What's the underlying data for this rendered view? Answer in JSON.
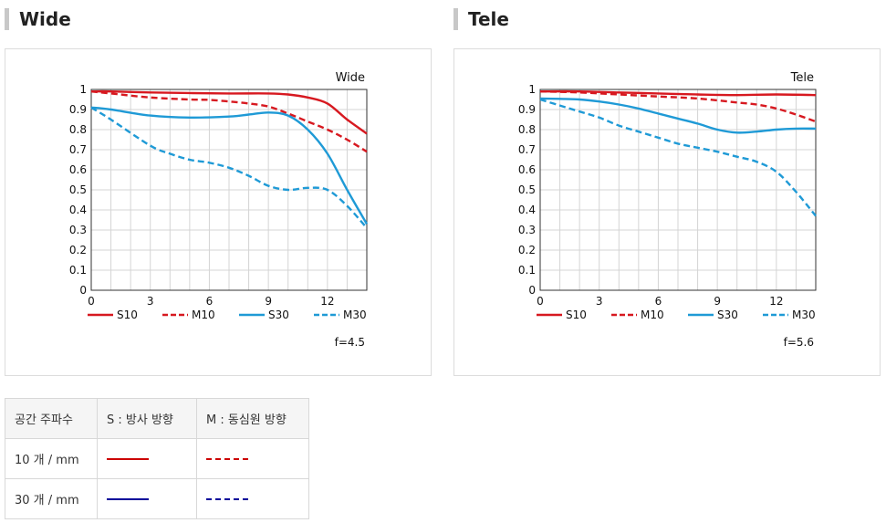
{
  "sections": [
    {
      "title": "Wide"
    },
    {
      "title": "Tele"
    }
  ],
  "colors": {
    "sagittal_10": "#d71920",
    "sagittal_30": "#1f9ad6",
    "table_red": "#cc0000",
    "table_blue": "#000099"
  },
  "chart_data": [
    {
      "type": "line",
      "title": "Wide",
      "footnote": "f=4.5",
      "xlim": [
        0,
        14
      ],
      "ylim": [
        0,
        1
      ],
      "xticks": [
        "0",
        "3",
        "6",
        "9",
        "12"
      ],
      "yticks": [
        "0",
        "0.1",
        "0.2",
        "0.3",
        "0.4",
        "0.5",
        "0.6",
        "0.7",
        "0.8",
        "0.9",
        "1"
      ],
      "grid": true,
      "legend_position": "bottom",
      "series": [
        {
          "name": "S10",
          "color": "#d71920",
          "dash": false,
          "x": [
            0,
            1,
            3,
            5,
            7,
            9,
            10,
            11,
            12,
            13,
            14
          ],
          "y": [
            0.99,
            0.99,
            0.985,
            0.982,
            0.98,
            0.98,
            0.975,
            0.96,
            0.93,
            0.85,
            0.78
          ]
        },
        {
          "name": "M10",
          "color": "#d71920",
          "dash": true,
          "x": [
            0,
            1,
            3,
            5,
            6,
            7,
            8,
            9,
            10,
            11,
            12,
            13,
            14
          ],
          "y": [
            0.99,
            0.98,
            0.96,
            0.95,
            0.948,
            0.94,
            0.93,
            0.915,
            0.88,
            0.84,
            0.8,
            0.75,
            0.69
          ]
        },
        {
          "name": "S30",
          "color": "#1f9ad6",
          "dash": false,
          "x": [
            0,
            1,
            3,
            5,
            7,
            8,
            9,
            10,
            11,
            12,
            13,
            14
          ],
          "y": [
            0.91,
            0.9,
            0.87,
            0.86,
            0.865,
            0.875,
            0.885,
            0.87,
            0.8,
            0.68,
            0.5,
            0.33
          ]
        },
        {
          "name": "M30",
          "color": "#1f9ad6",
          "dash": true,
          "x": [
            0,
            1,
            3,
            4,
            5,
            6,
            7,
            8,
            9,
            10,
            11,
            12,
            13,
            14
          ],
          "y": [
            0.91,
            0.85,
            0.72,
            0.68,
            0.65,
            0.635,
            0.61,
            0.57,
            0.52,
            0.5,
            0.51,
            0.5,
            0.42,
            0.31
          ]
        }
      ]
    },
    {
      "type": "line",
      "title": "Tele",
      "footnote": "f=5.6",
      "xlim": [
        0,
        14
      ],
      "ylim": [
        0,
        1
      ],
      "xticks": [
        "0",
        "3",
        "6",
        "9",
        "12"
      ],
      "yticks": [
        "0",
        "0.1",
        "0.2",
        "0.3",
        "0.4",
        "0.5",
        "0.6",
        "0.7",
        "0.8",
        "0.9",
        "1"
      ],
      "grid": true,
      "legend_position": "bottom",
      "series": [
        {
          "name": "S10",
          "color": "#d71920",
          "dash": false,
          "x": [
            0,
            2,
            4,
            6,
            8,
            10,
            12,
            14
          ],
          "y": [
            0.99,
            0.99,
            0.985,
            0.98,
            0.975,
            0.972,
            0.975,
            0.972
          ]
        },
        {
          "name": "M10",
          "color": "#d71920",
          "dash": true,
          "x": [
            0,
            2,
            4,
            6,
            8,
            10,
            11,
            12,
            13,
            14
          ],
          "y": [
            0.99,
            0.985,
            0.975,
            0.965,
            0.955,
            0.935,
            0.925,
            0.905,
            0.875,
            0.84
          ]
        },
        {
          "name": "S30",
          "color": "#1f9ad6",
          "dash": false,
          "x": [
            0,
            1,
            2,
            3,
            4,
            5,
            6,
            7,
            8,
            9,
            10,
            11,
            12,
            13,
            14
          ],
          "y": [
            0.955,
            0.953,
            0.95,
            0.94,
            0.925,
            0.905,
            0.88,
            0.855,
            0.83,
            0.8,
            0.785,
            0.79,
            0.8,
            0.805,
            0.805
          ]
        },
        {
          "name": "M30",
          "color": "#1f9ad6",
          "dash": true,
          "x": [
            0,
            1,
            2,
            3,
            4,
            5,
            6,
            7,
            8,
            9,
            10,
            11,
            12,
            13,
            14
          ],
          "y": [
            0.95,
            0.92,
            0.89,
            0.86,
            0.82,
            0.79,
            0.76,
            0.73,
            0.71,
            0.69,
            0.665,
            0.64,
            0.59,
            0.49,
            0.37
          ]
        }
      ]
    }
  ],
  "legend_table": {
    "headers": [
      "공간 주파수",
      "S : 방사 방향",
      "M : 동심원 방향"
    ],
    "rows": [
      {
        "label": "10 개 / mm",
        "s_color": "#cc0000",
        "m_color": "#cc0000"
      },
      {
        "label": "30 개 / mm",
        "s_color": "#000099",
        "m_color": "#000099"
      }
    ]
  }
}
